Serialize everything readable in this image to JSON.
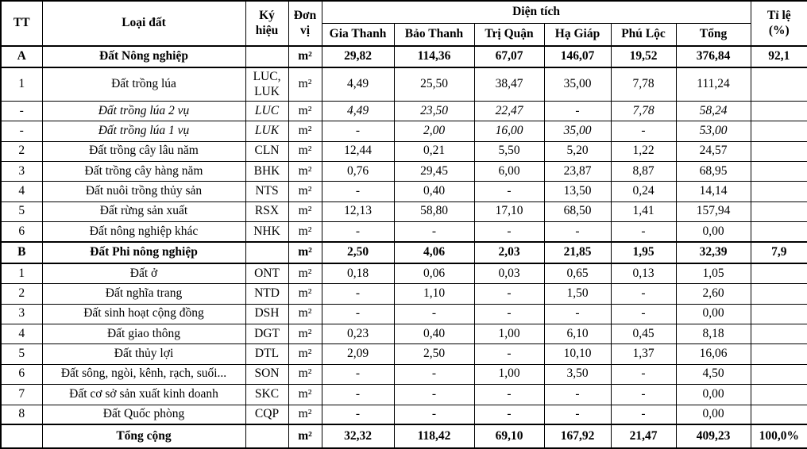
{
  "table": {
    "header": {
      "tt": "TT",
      "loai_dat": "Loại đất",
      "ky_hieu_line1": "Ký",
      "ky_hieu_line2": "hiệu",
      "don_vi_line1": "Đơn",
      "don_vi_line2": "vị",
      "dien_tich": "Diện tích",
      "ti_le_line1": "Tỉ lệ",
      "ti_le_line2": "(%)",
      "communes": [
        "Gia Thanh",
        "Bảo Thanh",
        "Trị Quận",
        "Hạ Giáp",
        "Phú Lộc",
        "Tổng"
      ]
    },
    "unit_symbol": "m²",
    "rows": [
      {
        "tt": "A",
        "name": "Đất Nông nghiệp",
        "symbol": "",
        "unit": "m²",
        "values": [
          "29,82",
          "114,36",
          "67,07",
          "146,07",
          "19,52",
          "376,84"
        ],
        "ratio": "92,1",
        "style": "bold"
      },
      {
        "tt": "1",
        "name": "Đất trồng lúa",
        "symbol": "LUC, LUK",
        "unit": "m²",
        "values": [
          "4,49",
          "25,50",
          "38,47",
          "35,00",
          "7,78",
          "111,24"
        ],
        "ratio": "",
        "style": "normal"
      },
      {
        "tt": "-",
        "name": "Đất trồng lúa 2 vụ",
        "symbol": "LUC",
        "unit": "m²",
        "values": [
          "4,49",
          "23,50",
          "22,47",
          "-",
          "7,78",
          "58,24"
        ],
        "ratio": "",
        "style": "italic"
      },
      {
        "tt": "-",
        "name": "Đất trồng lúa 1 vụ",
        "symbol": "LUK",
        "unit": "m²",
        "values": [
          "-",
          "2,00",
          "16,00",
          "35,00",
          "-",
          "53,00"
        ],
        "ratio": "",
        "style": "italic"
      },
      {
        "tt": "2",
        "name": "Đất trồng cây lâu năm",
        "symbol": "CLN",
        "unit": "m²",
        "values": [
          "12,44",
          "0,21",
          "5,50",
          "5,20",
          "1,22",
          "24,57"
        ],
        "ratio": "",
        "style": "normal"
      },
      {
        "tt": "3",
        "name": "Đất trồng cây hàng năm",
        "symbol": "BHK",
        "unit": "m²",
        "values": [
          "0,76",
          "29,45",
          "6,00",
          "23,87",
          "8,87",
          "68,95"
        ],
        "ratio": "",
        "style": "normal"
      },
      {
        "tt": "4",
        "name": "Đất nuôi trồng thủy sản",
        "symbol": "NTS",
        "unit": "m²",
        "values": [
          "-",
          "0,40",
          "-",
          "13,50",
          "0,24",
          "14,14"
        ],
        "ratio": "",
        "style": "normal"
      },
      {
        "tt": "5",
        "name": "Đất rừng sản xuất",
        "symbol": "RSX",
        "unit": "m²",
        "values": [
          "12,13",
          "58,80",
          "17,10",
          "68,50",
          "1,41",
          "157,94"
        ],
        "ratio": "",
        "style": "normal"
      },
      {
        "tt": "6",
        "name": "Đất nông nghiệp khác",
        "symbol": "NHK",
        "unit": "m²",
        "values": [
          "-",
          "-",
          "-",
          "-",
          "-",
          "0,00"
        ],
        "ratio": "",
        "style": "normal"
      },
      {
        "tt": "B",
        "name": "Đất Phi nông nghiệp",
        "symbol": "",
        "unit": "m²",
        "values": [
          "2,50",
          "4,06",
          "2,03",
          "21,85",
          "1,95",
          "32,39"
        ],
        "ratio": "7,9",
        "style": "bold"
      },
      {
        "tt": "1",
        "name": "Đất ở",
        "symbol": "ONT",
        "unit": "m²",
        "values": [
          "0,18",
          "0,06",
          "0,03",
          "0,65",
          "0,13",
          "1,05"
        ],
        "ratio": "",
        "style": "normal"
      },
      {
        "tt": "2",
        "name": "Đất nghĩa trang",
        "symbol": "NTD",
        "unit": "m²",
        "values": [
          "-",
          "1,10",
          "-",
          "1,50",
          "-",
          "2,60"
        ],
        "ratio": "",
        "style": "normal"
      },
      {
        "tt": "3",
        "name": "Đất sinh hoạt cộng đồng",
        "symbol": "DSH",
        "unit": "m²",
        "values": [
          "-",
          "-",
          "-",
          "-",
          "-",
          "0,00"
        ],
        "ratio": "",
        "style": "normal"
      },
      {
        "tt": "4",
        "name": "Đất giao thông",
        "symbol": "DGT",
        "unit": "m²",
        "values": [
          "0,23",
          "0,40",
          "1,00",
          "6,10",
          "0,45",
          "8,18"
        ],
        "ratio": "",
        "style": "normal"
      },
      {
        "tt": "5",
        "name": "Đất thủy lợi",
        "symbol": "DTL",
        "unit": "m²",
        "values": [
          "2,09",
          "2,50",
          "-",
          "10,10",
          "1,37",
          "16,06"
        ],
        "ratio": "",
        "style": "normal"
      },
      {
        "tt": "6",
        "name": "Đất sông, ngòi, kênh, rạch, suối...",
        "symbol": "SON",
        "unit": "m²",
        "values": [
          "-",
          "-",
          "1,00",
          "3,50",
          "-",
          "4,50"
        ],
        "ratio": "",
        "style": "normal"
      },
      {
        "tt": "7",
        "name": "Đất cơ sở sản xuất kinh doanh",
        "symbol": "SKC",
        "unit": "m²",
        "values": [
          "-",
          "-",
          "-",
          "-",
          "-",
          "0,00"
        ],
        "ratio": "",
        "style": "normal"
      },
      {
        "tt": "8",
        "name": "Đất Quốc phòng",
        "symbol": "CQP",
        "unit": "m²",
        "values": [
          "-",
          "-",
          "-",
          "-",
          "-",
          "0,00"
        ],
        "ratio": "",
        "style": "normal"
      },
      {
        "tt": "",
        "name": "Tổng cộng",
        "symbol": "",
        "unit": "m²",
        "values": [
          "32,32",
          "118,42",
          "69,10",
          "167,92",
          "21,47",
          "409,23"
        ],
        "ratio": "100,0%",
        "style": "bold-total"
      }
    ]
  }
}
